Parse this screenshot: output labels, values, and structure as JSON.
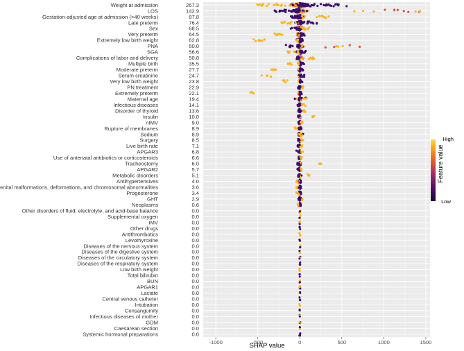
{
  "chart_data": {
    "type": "scatter",
    "subtype": "shap-beeswarm",
    "xlabel": "SHAP value",
    "ylabel": "",
    "xlim": [
      -1150,
      1550
    ],
    "xticks": [
      -1000,
      -500,
      0,
      500,
      1000,
      1500
    ],
    "grid": true,
    "legend": {
      "title": "Feature value",
      "high_label": "High",
      "low_label": "Low",
      "placement": "right"
    },
    "colors": {
      "low": "#3b0f70",
      "mid": "#dd513a",
      "high": "#fcb519",
      "panel": "#ebebeb",
      "grid": "#ffffff"
    },
    "features": [
      {
        "name": "Weight at admission",
        "mean_abs_shap": "267.3",
        "spread": [
          -520,
          560
        ],
        "low_side": "positive",
        "high_tail": [
          -520,
          -150
        ]
      },
      {
        "name": "LOS",
        "mean_abs_shap": "142.9",
        "spread": [
          -350,
          1480
        ],
        "low_side": "negative",
        "high_tail": [
          600,
          1480
        ]
      },
      {
        "name": "Gestation-adjusted age at admission (>40 weeks)",
        "mean_abs_shap": "87.8",
        "spread": [
          -120,
          350
        ],
        "low_side": "negative",
        "high_tail": [
          200,
          350
        ]
      },
      {
        "name": "Late preterm",
        "mean_abs_shap": "76.4",
        "spread": [
          -230,
          220
        ],
        "low_side": "positive",
        "high_tail": [
          -230,
          -100
        ]
      },
      {
        "name": "Sex",
        "mean_abs_shap": "68.5",
        "spread": [
          -110,
          120
        ],
        "low_side": "negative",
        "high_tail": [
          30,
          120
        ]
      },
      {
        "name": "Very preterm",
        "mean_abs_shap": "64.5",
        "spread": [
          -320,
          60
        ],
        "low_side": "positive",
        "high_tail": [
          -320,
          -200
        ]
      },
      {
        "name": "Extremely low birth weight",
        "mean_abs_shap": "62.8",
        "spread": [
          -560,
          40
        ],
        "low_side": "positive",
        "high_tail": [
          -560,
          -420
        ]
      },
      {
        "name": "PNA",
        "mean_abs_shap": "60.0",
        "spread": [
          -200,
          720
        ],
        "low_side": "negative",
        "high_tail": [
          250,
          720
        ]
      },
      {
        "name": "SGA",
        "mean_abs_shap": "56.6",
        "spread": [
          -150,
          80
        ],
        "low_side": "positive",
        "high_tail": [
          -150,
          -50
        ]
      },
      {
        "name": "Complications of labor and delivery",
        "mean_abs_shap": "50.8",
        "spread": [
          -40,
          170
        ],
        "low_side": "negative",
        "high_tail": [
          60,
          170
        ]
      },
      {
        "name": "Multiple birth",
        "mean_abs_shap": "35.5",
        "spread": [
          -150,
          50
        ],
        "low_side": "positive",
        "high_tail": [
          -150,
          -80
        ]
      },
      {
        "name": "Moderate preterm",
        "mean_abs_shap": "27.7",
        "spread": [
          -390,
          40
        ],
        "low_side": "positive",
        "high_tail": [
          -390,
          -280
        ]
      },
      {
        "name": "Serum creatinine",
        "mean_abs_shap": "24.7",
        "spread": [
          -470,
          80
        ],
        "low_side": "positive",
        "high_tail": [
          -470,
          -180
        ]
      },
      {
        "name": "Very low birth weight",
        "mean_abs_shap": "23.8",
        "spread": [
          -200,
          30
        ],
        "low_side": "positive",
        "high_tail": [
          -200,
          -120
        ]
      },
      {
        "name": "PN treatment",
        "mean_abs_shap": "22.9",
        "spread": [
          -30,
          40
        ],
        "low_side": "negative",
        "high_tail": [
          10,
          40
        ]
      },
      {
        "name": "Extremely preterm",
        "mean_abs_shap": "22.1",
        "spread": [
          -600,
          25
        ],
        "low_side": "positive",
        "high_tail": [
          -600,
          -540
        ]
      },
      {
        "name": "Maternal age",
        "mean_abs_shap": "19.4",
        "spread": [
          -80,
          90
        ],
        "low_side": "mixed",
        "high_tail": [
          -80,
          90
        ]
      },
      {
        "name": "Infectious diseases",
        "mean_abs_shap": "14.1",
        "spread": [
          -30,
          80
        ],
        "low_side": "negative",
        "high_tail": [
          30,
          80
        ]
      },
      {
        "name": "Disorder of thyroid",
        "mean_abs_shap": "13.6",
        "spread": [
          -20,
          70
        ],
        "low_side": "negative",
        "high_tail": [
          30,
          70
        ]
      },
      {
        "name": "Insulin",
        "mean_abs_shap": "10.0",
        "spread": [
          -20,
          180
        ],
        "low_side": "negative",
        "high_tail": [
          150,
          180
        ]
      },
      {
        "name": "nIMV",
        "mean_abs_shap": "9.0",
        "spread": [
          -20,
          40
        ],
        "low_side": "negative",
        "high_tail": [
          10,
          40
        ]
      },
      {
        "name": "Rupture of membranes",
        "mean_abs_shap": "8.9",
        "spread": [
          -60,
          20
        ],
        "low_side": "positive",
        "high_tail": [
          -60,
          -20
        ]
      },
      {
        "name": "Sodium",
        "mean_abs_shap": "8.9",
        "spread": [
          -30,
          40
        ],
        "low_side": "mixed",
        "high_tail": [
          -10,
          40
        ]
      },
      {
        "name": "Surgery",
        "mean_abs_shap": "8.5",
        "spread": [
          -20,
          40
        ],
        "low_side": "negative",
        "high_tail": [
          10,
          40
        ]
      },
      {
        "name": "Live birth rate",
        "mean_abs_shap": "7.1",
        "spread": [
          -30,
          30
        ],
        "low_side": "negative",
        "high_tail": [
          0,
          30
        ]
      },
      {
        "name": "APGAR3",
        "mean_abs_shap": "6.8",
        "spread": [
          -50,
          70
        ],
        "low_side": "negative",
        "high_tail": [
          0,
          70
        ]
      },
      {
        "name": "Use of antenatal antibiotics or corticosteroids",
        "mean_abs_shap": "6.6",
        "spread": [
          -20,
          20
        ],
        "low_side": "negative",
        "high_tail": [
          0,
          20
        ]
      },
      {
        "name": "Tracheostomy",
        "mean_abs_shap": "6.0",
        "spread": [
          -40,
          270
        ],
        "low_side": "negative",
        "high_tail": [
          230,
          270
        ]
      },
      {
        "name": "APGAR2",
        "mean_abs_shap": "5.7",
        "spread": [
          -30,
          40
        ],
        "low_side": "negative",
        "high_tail": [
          0,
          40
        ]
      },
      {
        "name": "Metabolic disorders",
        "mean_abs_shap": "5.1",
        "spread": [
          -20,
          120
        ],
        "low_side": "negative",
        "high_tail": [
          90,
          120
        ]
      },
      {
        "name": "Antihypertensives",
        "mean_abs_shap": "4.0",
        "spread": [
          -40,
          15
        ],
        "low_side": "positive",
        "high_tail": [
          -40,
          -20
        ]
      },
      {
        "name": "Congenital malformations, deformations, and chromosomal abnormalities",
        "mean_abs_shap": "3.6",
        "spread": [
          -40,
          15
        ],
        "low_side": "positive",
        "high_tail": [
          -40,
          -20
        ]
      },
      {
        "name": "Progesterone",
        "mean_abs_shap": "3.4",
        "spread": [
          -40,
          15
        ],
        "low_side": "positive",
        "high_tail": [
          -40,
          -20
        ]
      },
      {
        "name": "GHT",
        "mean_abs_shap": "2.9",
        "spread": [
          -10,
          40
        ],
        "low_side": "negative",
        "high_tail": [
          20,
          40
        ]
      },
      {
        "name": "Neoplasms",
        "mean_abs_shap": "0.6",
        "spread": [
          -25,
          10
        ],
        "low_side": "positive",
        "high_tail": [
          -25,
          -15
        ]
      },
      {
        "name": "Other disorders of fluid, electrolyte, and acid-base balance",
        "mean_abs_shap": "0.0",
        "spread": [
          0,
          0
        ],
        "low_side": "mixed",
        "high_tail": [
          0,
          0
        ]
      },
      {
        "name": "Supplemental oxygen",
        "mean_abs_shap": "0.0",
        "spread": [
          0,
          0
        ],
        "low_side": "mixed",
        "high_tail": [
          0,
          0
        ]
      },
      {
        "name": "IMV",
        "mean_abs_shap": "0.0",
        "spread": [
          0,
          0
        ],
        "low_side": "mixed",
        "high_tail": [
          0,
          0
        ]
      },
      {
        "name": "Other drugs",
        "mean_abs_shap": "0.0",
        "spread": [
          0,
          0
        ],
        "low_side": "mixed",
        "high_tail": [
          0,
          0
        ]
      },
      {
        "name": "Antithrombotics",
        "mean_abs_shap": "0.0",
        "spread": [
          0,
          0
        ],
        "low_side": "mixed",
        "high_tail": [
          0,
          0
        ]
      },
      {
        "name": "Levothyroxine",
        "mean_abs_shap": "0.0",
        "spread": [
          0,
          0
        ],
        "low_side": "mixed",
        "high_tail": [
          0,
          0
        ]
      },
      {
        "name": "Diseases of the nervous system",
        "mean_abs_shap": "0.0",
        "spread": [
          0,
          0
        ],
        "low_side": "mixed",
        "high_tail": [
          0,
          0
        ]
      },
      {
        "name": "Diseases of the digestive system",
        "mean_abs_shap": "0.0",
        "spread": [
          0,
          0
        ],
        "low_side": "mixed",
        "high_tail": [
          0,
          0
        ]
      },
      {
        "name": "Diseases of the circulatory system",
        "mean_abs_shap": "0.0",
        "spread": [
          0,
          0
        ],
        "low_side": "mixed",
        "high_tail": [
          0,
          0
        ]
      },
      {
        "name": "Diseases of the respiratory system",
        "mean_abs_shap": "0.0",
        "spread": [
          0,
          0
        ],
        "low_side": "mixed",
        "high_tail": [
          0,
          0
        ]
      },
      {
        "name": "Low birth weight",
        "mean_abs_shap": "0.0",
        "spread": [
          0,
          0
        ],
        "low_side": "mixed",
        "high_tail": [
          0,
          0
        ]
      },
      {
        "name": "Total bilirubin",
        "mean_abs_shap": "0.0",
        "spread": [
          0,
          0
        ],
        "low_side": "mixed",
        "high_tail": [
          0,
          0
        ]
      },
      {
        "name": "BUN",
        "mean_abs_shap": "0.0",
        "spread": [
          0,
          0
        ],
        "low_side": "mixed",
        "high_tail": [
          0,
          0
        ]
      },
      {
        "name": "APGAR1",
        "mean_abs_shap": "0.0",
        "spread": [
          0,
          0
        ],
        "low_side": "mixed",
        "high_tail": [
          0,
          0
        ]
      },
      {
        "name": "Lactate",
        "mean_abs_shap": "0.0",
        "spread": [
          0,
          0
        ],
        "low_side": "mixed",
        "high_tail": [
          0,
          0
        ]
      },
      {
        "name": "Central venous catheter",
        "mean_abs_shap": "0.0",
        "spread": [
          0,
          0
        ],
        "low_side": "mixed",
        "high_tail": [
          0,
          0
        ]
      },
      {
        "name": "Intubation",
        "mean_abs_shap": "0.0",
        "spread": [
          0,
          0
        ],
        "low_side": "mixed",
        "high_tail": [
          0,
          0
        ]
      },
      {
        "name": "Consanguinity",
        "mean_abs_shap": "0.0",
        "spread": [
          0,
          0
        ],
        "low_side": "mixed",
        "high_tail": [
          0,
          0
        ]
      },
      {
        "name": "Infectious diseases of mother",
        "mean_abs_shap": "0.0",
        "spread": [
          0,
          0
        ],
        "low_side": "mixed",
        "high_tail": [
          0,
          0
        ]
      },
      {
        "name": "GDM",
        "mean_abs_shap": "0.0",
        "spread": [
          0,
          0
        ],
        "low_side": "mixed",
        "high_tail": [
          0,
          0
        ]
      },
      {
        "name": "Caesarean section",
        "mean_abs_shap": "0.0",
        "spread": [
          0,
          0
        ],
        "low_side": "mixed",
        "high_tail": [
          0,
          0
        ]
      },
      {
        "name": "Systemic hormonal preparations",
        "mean_abs_shap": "0.0",
        "spread": [
          0,
          0
        ],
        "low_side": "mixed",
        "high_tail": [
          0,
          0
        ]
      }
    ]
  }
}
